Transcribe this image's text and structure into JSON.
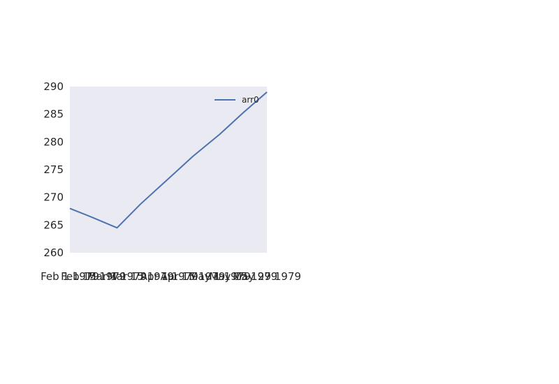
{
  "chart_data": {
    "type": "line",
    "x": [
      "Feb 1 1979",
      "Feb 15 1979",
      "Mar 1 1979",
      "Mar 15 1979",
      "Apr 1 1979",
      "Apr 15 1979",
      "May 1 1979",
      "May 15 1979",
      "May 29 1979"
    ],
    "x_tick_labels": [
      "Feb 1 1979",
      "Feb 15 1979",
      "Mar 1 1979",
      "Mar 15 1979",
      "Apr 1 1979",
      "Apr 15 1979",
      "May 1 1979",
      "May 15 1979",
      "May 29 1979"
    ],
    "series": [
      {
        "name": "arr0",
        "color": "#4c72b0",
        "values": [
          268,
          266.3,
          264.5,
          268.8,
          273.5,
          277.4,
          281.4,
          285.3,
          289
        ]
      }
    ],
    "y_ticks": [
      260,
      265,
      270,
      275,
      280,
      285,
      290
    ],
    "ylim": [
      260,
      290
    ],
    "title": "",
    "xlabel": "",
    "ylabel": "",
    "legend": "top-right",
    "grid": false,
    "plot_background": "#eaeaf2"
  }
}
